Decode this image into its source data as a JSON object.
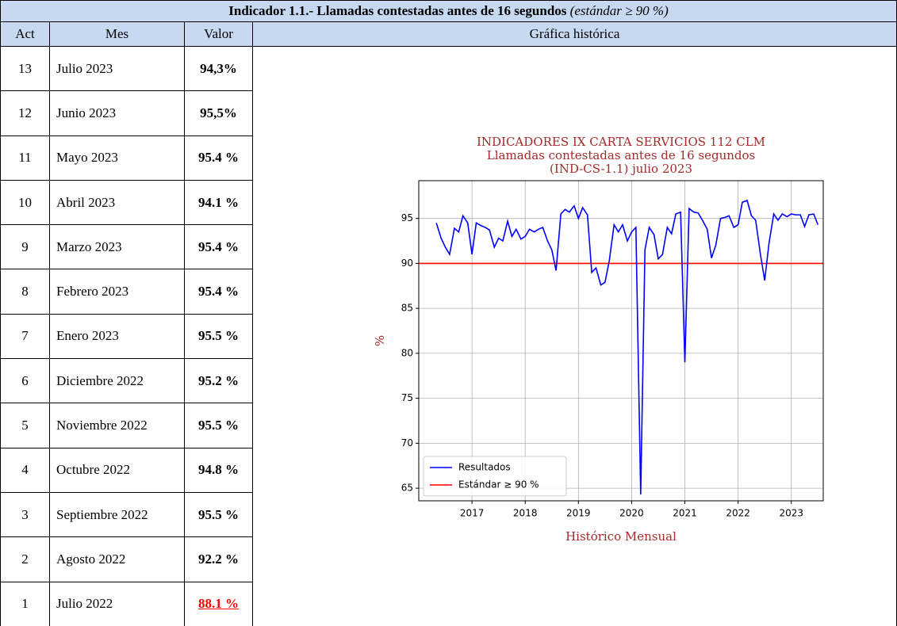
{
  "table": {
    "title": "Indicador 1.1.- Llamadas contestadas antes de 16 segundos",
    "title_note": "(estándar ≥ 90 %)",
    "headers": [
      "Act",
      "Mes",
      "Valor",
      "Gráfica histórica"
    ],
    "rows": [
      [
        "13",
        "Julio 2023",
        "94,3%"
      ],
      [
        "12",
        "Junio 2023",
        "95,5%"
      ],
      [
        "11",
        "Mayo 2023",
        "95.4 %"
      ],
      [
        "10",
        "Abril 2023",
        "94.1 %"
      ],
      [
        "9",
        "Marzo 2023",
        "95.4 %"
      ],
      [
        "8",
        "Febrero 2023",
        "95.4 %"
      ],
      [
        "7",
        "Enero 2023",
        "95.5 %"
      ],
      [
        "6",
        "Diciembre 2022",
        "95.2 %"
      ],
      [
        "5",
        "Noviembre 2022",
        "95.5 %"
      ],
      [
        "4",
        "Octubre 2022",
        "94.8 %"
      ],
      [
        "3",
        "Septiembre 2022",
        "95.5 %"
      ],
      [
        "2",
        "Agosto 2022",
        "92.2 %"
      ],
      [
        "1",
        "Julio 2022",
        "88.1 %"
      ]
    ]
  },
  "chart_data": {
    "type": "line",
    "title": [
      "INDICADORES IX CARTA SERVICIOS 112 CLM",
      "Llamadas contestadas antes de 16 segundos",
      "(IND-CS-1.1) julio 2023"
    ],
    "xlabel": "Histórico Mensual",
    "ylabel": "%",
    "x": [
      2016.33,
      2016.42,
      2016.5,
      2016.58,
      2016.67,
      2016.75,
      2016.83,
      2016.92,
      2017.0,
      2017.08,
      2017.17,
      2017.25,
      2017.33,
      2017.42,
      2017.5,
      2017.58,
      2017.67,
      2017.75,
      2017.83,
      2017.92,
      2018.0,
      2018.08,
      2018.17,
      2018.25,
      2018.33,
      2018.42,
      2018.5,
      2018.58,
      2018.67,
      2018.75,
      2018.83,
      2018.92,
      2019.0,
      2019.08,
      2019.17,
      2019.25,
      2019.33,
      2019.42,
      2019.5,
      2019.58,
      2019.67,
      2019.75,
      2019.83,
      2019.92,
      2020.0,
      2020.08,
      2020.17,
      2020.25,
      2020.33,
      2020.42,
      2020.5,
      2020.58,
      2020.67,
      2020.75,
      2020.83,
      2020.92,
      2021.0,
      2021.08,
      2021.17,
      2021.25,
      2021.33,
      2021.42,
      2021.5,
      2021.58,
      2021.67,
      2021.75,
      2021.83,
      2021.92,
      2022.0,
      2022.08,
      2022.17,
      2022.25,
      2022.33,
      2022.42,
      2022.5,
      2022.58,
      2022.67,
      2022.75,
      2022.83,
      2022.92,
      2023.0,
      2023.08,
      2023.17,
      2023.25,
      2023.33,
      2023.42,
      2023.5
    ],
    "series": [
      {
        "name": "Resultados",
        "color": "#0000ff",
        "values": [
          94.5,
          92.8,
          91.8,
          91.0,
          93.9,
          93.5,
          95.3,
          94.5,
          91.0,
          94.5,
          94.2,
          94.0,
          93.7,
          91.8,
          92.8,
          92.5,
          94.7,
          93.0,
          93.8,
          92.7,
          93.0,
          93.8,
          93.5,
          93.8,
          94.0,
          92.5,
          91.5,
          89.2,
          95.5,
          96.0,
          95.7,
          96.4,
          95.0,
          96.2,
          95.4,
          89.0,
          89.5,
          87.6,
          87.9,
          90.3,
          94.3,
          93.5,
          94.3,
          92.5,
          93.5,
          94.0,
          64.3,
          91.5,
          94.0,
          93.2,
          90.5,
          91.0,
          94.0,
          93.3,
          95.5,
          95.7,
          79.0,
          96.1,
          95.7,
          95.6,
          94.8,
          93.8,
          90.6,
          92.0,
          95.0,
          95.1,
          95.3,
          94.0,
          94.3,
          96.8,
          97.0,
          95.3,
          94.8,
          91.0,
          88.1,
          92.2,
          95.5,
          94.8,
          95.5,
          95.2,
          95.5,
          95.4,
          95.4,
          94.1,
          95.4,
          95.5,
          94.3
        ]
      }
    ],
    "reference": {
      "name": "Estándar ≥ 90 %",
      "color": "#ff0000",
      "value": 90
    },
    "xlim": [
      2016.0,
      2023.6
    ],
    "xticks": [
      2017,
      2018,
      2019,
      2020,
      2021,
      2022,
      2023
    ],
    "ylim": [
      63.6,
      99.2
    ],
    "yticks": [
      65,
      70,
      75,
      80,
      85,
      90,
      95
    ],
    "grid": true,
    "legend": "lower left"
  }
}
